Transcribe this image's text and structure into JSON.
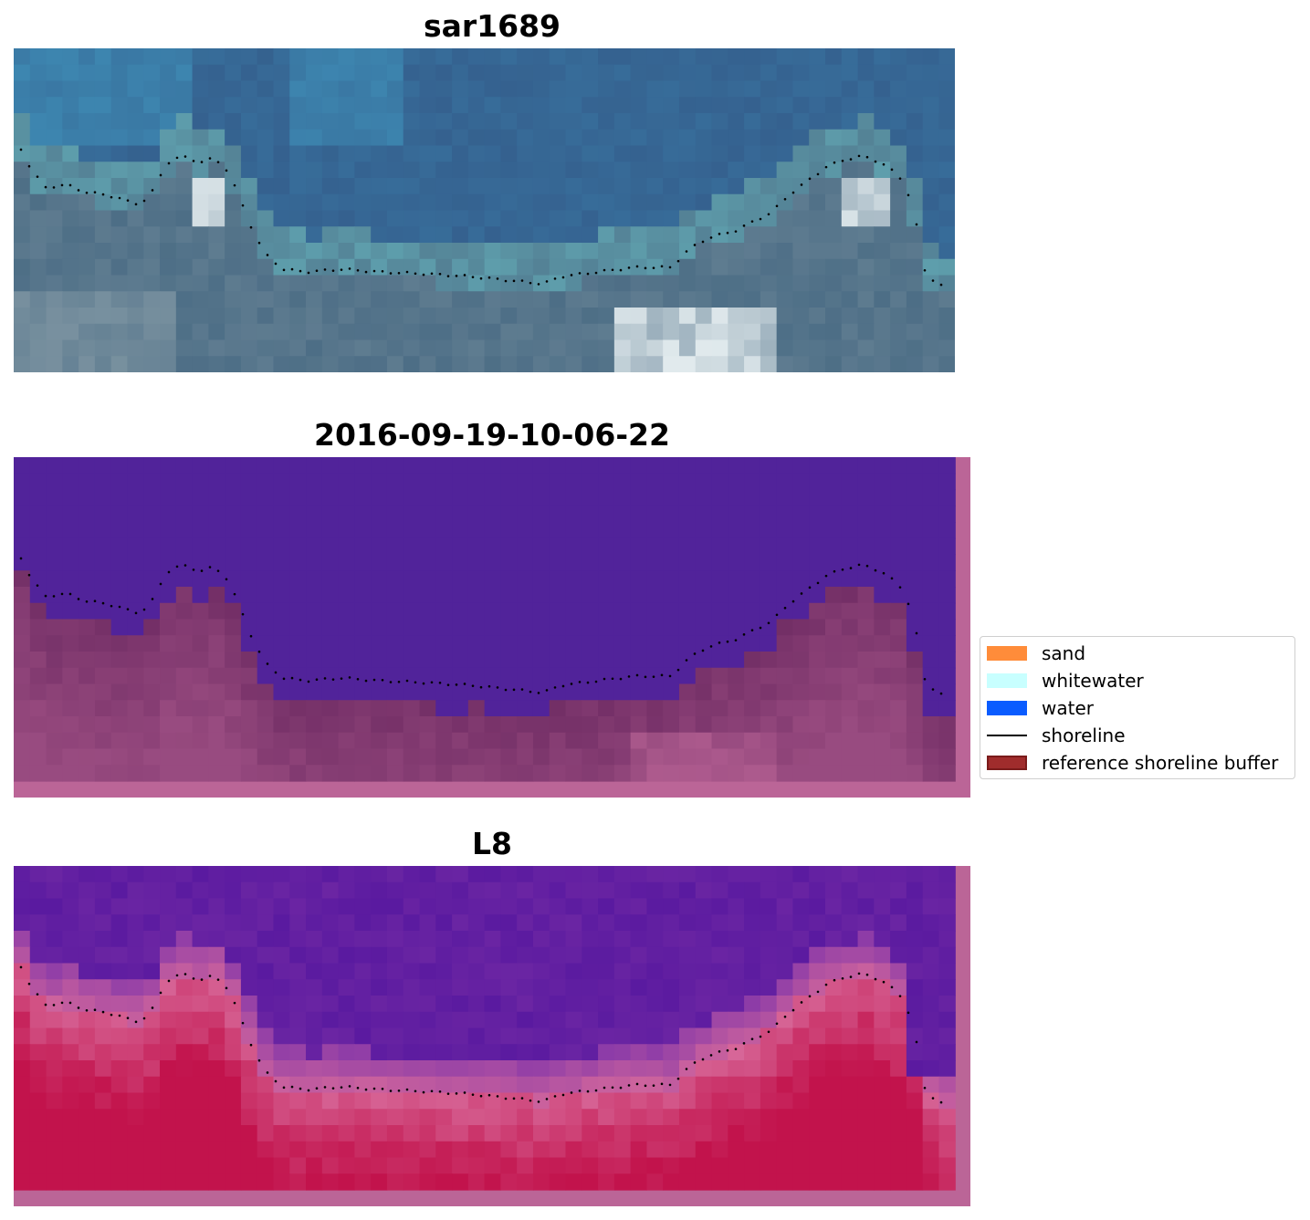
{
  "panels": [
    {
      "title": "sar1689"
    },
    {
      "title": "2016-09-19-10-06-22"
    },
    {
      "title": "L8"
    }
  ],
  "legend": {
    "items": [
      {
        "label": "sand",
        "kind": "patch",
        "color": "#ff8c3a"
      },
      {
        "label": "whitewater",
        "kind": "patch",
        "color": "#c8ffff"
      },
      {
        "label": "water",
        "kind": "patch",
        "color": "#0a5cff"
      },
      {
        "label": "shoreline",
        "kind": "line",
        "color": "#000000"
      },
      {
        "label": "reference shoreline buffer",
        "kind": "patch",
        "color": "#a02c2c",
        "edge": "#7a1b1b"
      }
    ]
  },
  "colors": {
    "water_class": "#51239a",
    "buffer_overlay": "#6e2b63",
    "border_pink": "#bb6597",
    "rgb_deep_blue": "#35618f",
    "index_low": "#5a1aa0",
    "index_high": "#c2134c"
  }
}
